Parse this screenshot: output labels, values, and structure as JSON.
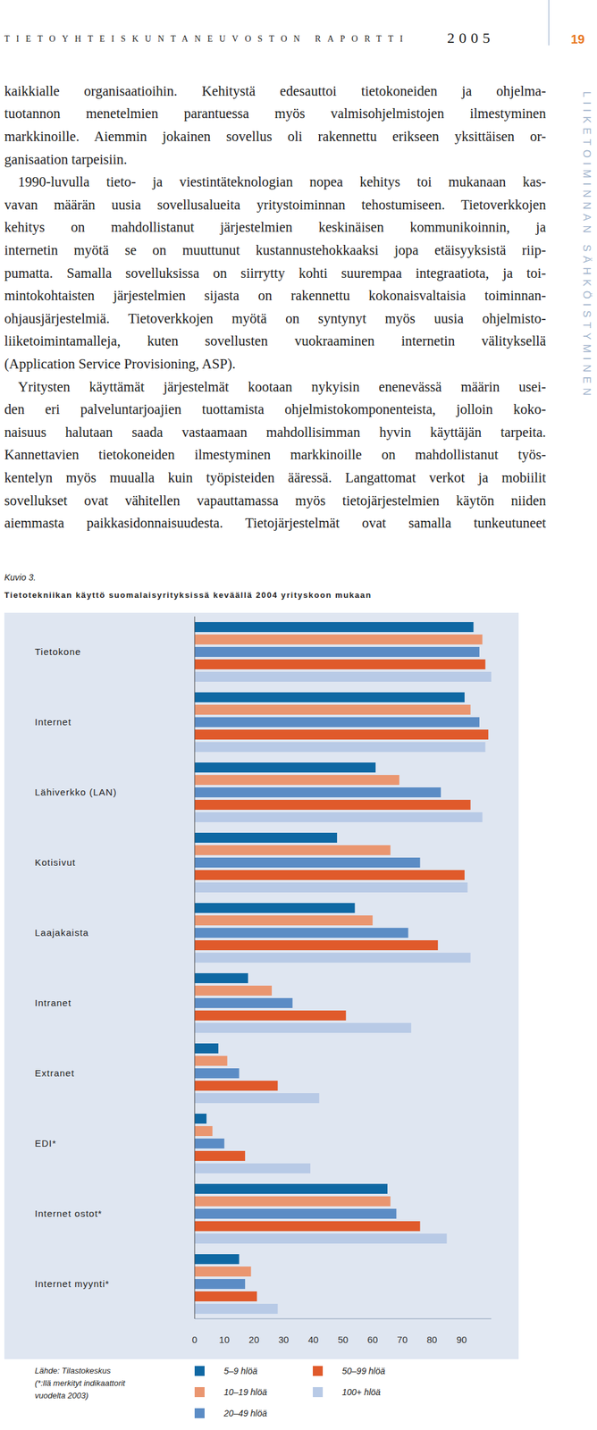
{
  "header": {
    "title": "TIETOYHTEISKUNTANEUVOSTON RAPORTTI",
    "year": "2005",
    "page": "19"
  },
  "side_title": "LIIKETOIMINNAN SÄHKÖISTYMINEN",
  "body": {
    "paragraphs": [
      {
        "lines": [
          "kaikkialle organisaatioihin. Kehitystä edesauttoi tietokoneiden ja ohjelma-",
          "tuotannon menetelmien parantuessa myös valmisohjelmistojen ilmestyminen",
          "markkinoille. Aiemmin jokainen sovellus oli rakennettu erikseen yksittäisen or-",
          "ganisaation tarpeisiin."
        ]
      },
      {
        "lines": [
          "1990-luvulla tieto- ja viestintäteknologian nopea kehitys toi mukanaan kas-",
          "vavan määrän uusia sovellusalueita yritystoiminnan tehostumiseen. Tietoverkkojen",
          "kehitys on mahdollistanut järjestelmien keskinäisen kommunikoinnin, ja",
          "internetin myötä se on muuttunut kustannustehokkaaksi jopa etäisyyksistä riip-",
          "pumatta. Samalla sovelluksissa on siirrytty kohti suurempaa integraatiota, ja toi-",
          "mintokohtaisten järjestelmien sijasta on rakennettu kokonaisvaltaisia toiminnan-",
          "ohjausjärjestelmiä. Tietoverkkojen myötä on syntynyt myös uusia ohjelmisto-",
          "liiketoimintamalleja, kuten sovellusten vuokraaminen internetin välityksellä",
          "(Application Service Provisioning, ASP)."
        ]
      },
      {
        "lines": [
          "Yritysten käyttämät järjestelmät kootaan nykyisin enenevässä määrin usei-",
          "den eri palveluntarjoajien tuottamista ohjelmistokomponenteista, jolloin koko-",
          "naisuus halutaan saada vastaamaan mahdollisimman hyvin käyttäjän tarpeita.",
          "Kannettavien tietokoneiden ilmestyminen markkinoille on mahdollistanut työs-",
          "kentelyn myös muualla kuin työpisteiden ääressä. Langattomat verkot ja mobiilit",
          "sovellukset ovat vähitellen vapauttamassa myös tietojärjestelmien käytön niiden",
          "aiemmasta paikkasidonnaisuudesta. Tietojärjestelmät ovat samalla tunkeutuneet"
        ]
      }
    ]
  },
  "figure": {
    "label": "Kuvio 3.",
    "source": "Lähde: Tilastokeskus",
    "note_lines": [
      "(*:llä merkityt indikaattorit",
      "vuodelta 2003)"
    ]
  },
  "chart_data": {
    "type": "bar",
    "orientation": "horizontal",
    "title": "Tietotekniikan käyttö suomalaisyrityksissä keväällä 2004 yrityskoon mukaan",
    "categories": [
      "Tietokone",
      "Internet",
      "Lähiverkko (LAN)",
      "Kotisivut",
      "Laajakaista",
      "Intranet",
      "Extranet",
      "EDI*",
      "Internet ostot*",
      "Internet myynti*"
    ],
    "series": [
      {
        "name": "5–9 hlöä",
        "color": "#0f68a3",
        "values": [
          94,
          91,
          61,
          48,
          54,
          18,
          8,
          4,
          65,
          15
        ]
      },
      {
        "name": "10–19 hlöä",
        "color": "#ea9670",
        "values": [
          97,
          93,
          69,
          66,
          60,
          26,
          11,
          6,
          66,
          19
        ]
      },
      {
        "name": "20–49 hlöä",
        "color": "#5b8cc5",
        "values": [
          96,
          96,
          83,
          76,
          72,
          33,
          15,
          10,
          68,
          17
        ]
      },
      {
        "name": "50–99 hlöä",
        "color": "#e05a2b",
        "values": [
          98,
          99,
          93,
          91,
          82,
          51,
          28,
          17,
          76,
          21
        ]
      },
      {
        "name": "100+ hlöä",
        "color": "#b8cae6",
        "values": [
          100,
          98,
          97,
          92,
          93,
          73,
          42,
          39,
          85,
          28
        ]
      }
    ],
    "xlim": [
      0,
      100
    ],
    "xticks": [
      0,
      10,
      20,
      30,
      40,
      50,
      60,
      70,
      80,
      90
    ],
    "grid": false,
    "legend": "bottom"
  }
}
